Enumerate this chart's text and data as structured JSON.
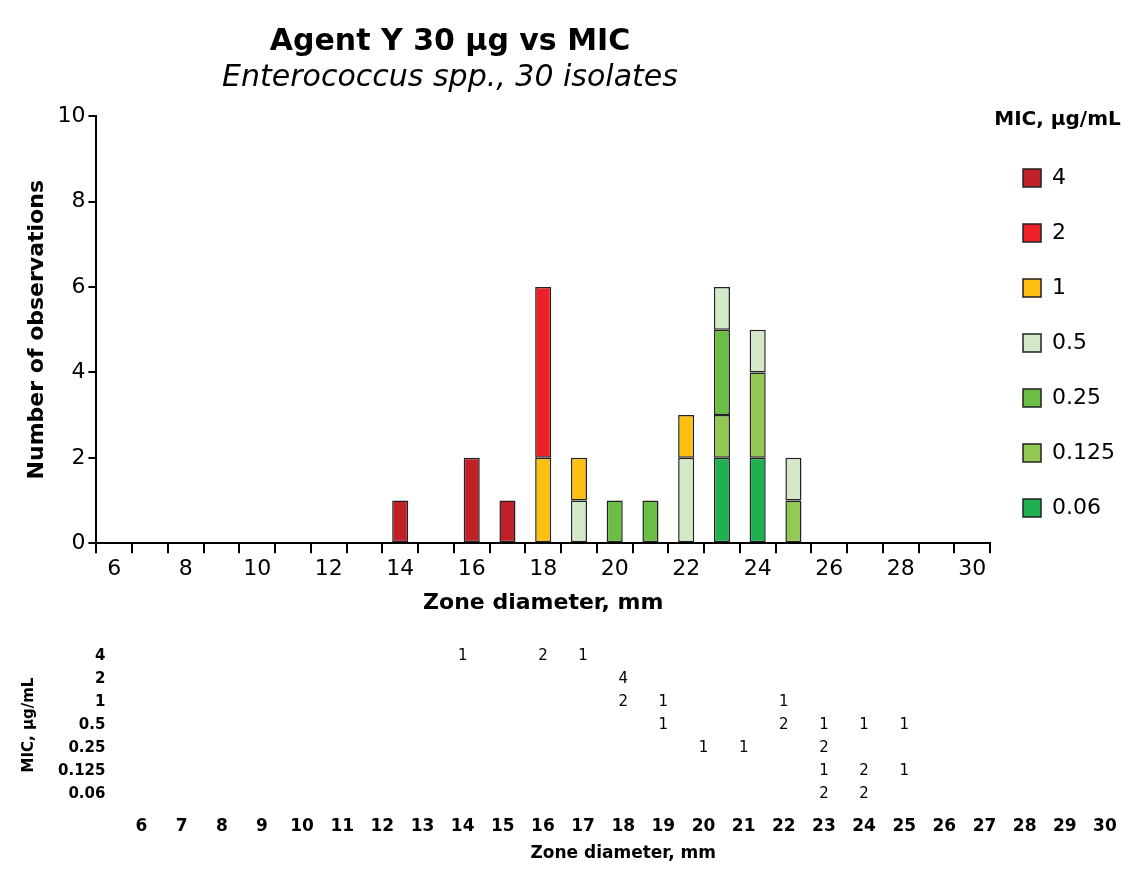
{
  "chart_data": [
    {
      "type": "bar",
      "title": "Agent Y 30 µg vs MIC",
      "subtitle": "Enterococcus spp., 30 isolates",
      "xlabel": "Zone diameter, mm",
      "ylabel": "Number of observations",
      "legend_title": "MIC, µg/mL",
      "legend": "right",
      "stacked": true,
      "categories": [
        "6",
        null,
        "8",
        null,
        "10",
        null,
        "12",
        null,
        "14",
        null,
        "16",
        null,
        "18",
        null,
        "20",
        null,
        "22",
        null,
        "24",
        null,
        "26",
        null,
        "28",
        null,
        "30"
      ],
      "ylim": [
        0,
        10
      ],
      "yticks": [
        0,
        2,
        4,
        6,
        8,
        10
      ],
      "series": [
        {
          "name": "0.06",
          "color": "#1fb04f",
          "values": [
            null,
            null,
            null,
            null,
            null,
            null,
            null,
            null,
            null,
            null,
            null,
            null,
            null,
            null,
            null,
            null,
            null,
            2,
            2,
            null,
            null,
            null,
            null,
            null,
            null
          ]
        },
        {
          "name": "0.125",
          "color": "#94c855",
          "values": [
            null,
            null,
            null,
            null,
            null,
            null,
            null,
            null,
            null,
            null,
            null,
            null,
            null,
            null,
            null,
            null,
            null,
            1,
            2,
            1,
            null,
            null,
            null,
            null,
            null
          ]
        },
        {
          "name": "0.25",
          "color": "#6abd45",
          "values": [
            null,
            null,
            null,
            null,
            null,
            null,
            null,
            null,
            null,
            null,
            null,
            null,
            null,
            null,
            1,
            1,
            null,
            2,
            null,
            null,
            null,
            null,
            null,
            null,
            null
          ]
        },
        {
          "name": "0.5",
          "color": "#d3e9c8",
          "values": [
            null,
            null,
            null,
            null,
            null,
            null,
            null,
            null,
            null,
            null,
            null,
            null,
            null,
            1,
            null,
            null,
            2,
            1,
            1,
            1,
            null,
            null,
            null,
            null,
            null
          ]
        },
        {
          "name": "1",
          "color": "#fdbf10",
          "values": [
            null,
            null,
            null,
            null,
            null,
            null,
            null,
            null,
            null,
            null,
            null,
            null,
            2,
            1,
            null,
            null,
            1,
            null,
            null,
            null,
            null,
            null,
            null,
            null,
            null
          ]
        },
        {
          "name": "2",
          "color": "#ee2128",
          "values": [
            null,
            null,
            null,
            null,
            null,
            null,
            null,
            null,
            null,
            null,
            null,
            null,
            4,
            null,
            null,
            null,
            null,
            null,
            null,
            null,
            null,
            null,
            null,
            null,
            null
          ]
        },
        {
          "name": "4",
          "color": "#c02129",
          "values": [
            null,
            null,
            null,
            null,
            null,
            null,
            null,
            null,
            1,
            null,
            2,
            1,
            null,
            null,
            null,
            null,
            null,
            null,
            null,
            null,
            null,
            null,
            null,
            null,
            null
          ]
        }
      ]
    },
    {
      "type": "heatmap",
      "data_labels": true,
      "xlabel": "Zone diameter, mm",
      "ylabel": "MIC, µg/mL",
      "categories": [
        "6",
        "7",
        "8",
        "9",
        "10",
        "11",
        "12",
        "13",
        "14",
        "15",
        "16",
        "17",
        "18",
        "19",
        "20",
        "21",
        "22",
        "23",
        "24",
        "25",
        "26",
        "27",
        "28",
        "29",
        "30"
      ],
      "y_categories": [
        "4",
        "2",
        "1",
        "0.5",
        "0.25",
        "0.125",
        "0.06"
      ],
      "cells": [
        [
          null,
          null,
          null,
          null,
          null,
          null,
          null,
          null,
          1,
          null,
          2,
          1,
          null,
          null,
          null,
          null,
          null,
          null,
          null,
          null,
          null,
          null,
          null,
          null,
          null
        ],
        [
          null,
          null,
          null,
          null,
          null,
          null,
          null,
          null,
          null,
          null,
          null,
          null,
          4,
          null,
          null,
          null,
          null,
          null,
          null,
          null,
          null,
          null,
          null,
          null,
          null
        ],
        [
          null,
          null,
          null,
          null,
          null,
          null,
          null,
          null,
          null,
          null,
          null,
          null,
          2,
          1,
          null,
          null,
          1,
          null,
          null,
          null,
          null,
          null,
          null,
          null,
          null
        ],
        [
          null,
          null,
          null,
          null,
          null,
          null,
          null,
          null,
          null,
          null,
          null,
          null,
          null,
          1,
          null,
          null,
          2,
          1,
          1,
          1,
          null,
          null,
          null,
          null,
          null
        ],
        [
          null,
          null,
          null,
          null,
          null,
          null,
          null,
          null,
          null,
          null,
          null,
          null,
          null,
          null,
          1,
          1,
          null,
          2,
          null,
          null,
          null,
          null,
          null,
          null,
          null
        ],
        [
          null,
          null,
          null,
          null,
          null,
          null,
          null,
          null,
          null,
          null,
          null,
          null,
          null,
          null,
          null,
          null,
          null,
          1,
          2,
          1,
          null,
          null,
          null,
          null,
          null
        ],
        [
          null,
          null,
          null,
          null,
          null,
          null,
          null,
          null,
          null,
          null,
          null,
          null,
          null,
          null,
          null,
          null,
          null,
          2,
          2,
          null,
          null,
          null,
          null,
          null,
          null
        ]
      ]
    }
  ]
}
